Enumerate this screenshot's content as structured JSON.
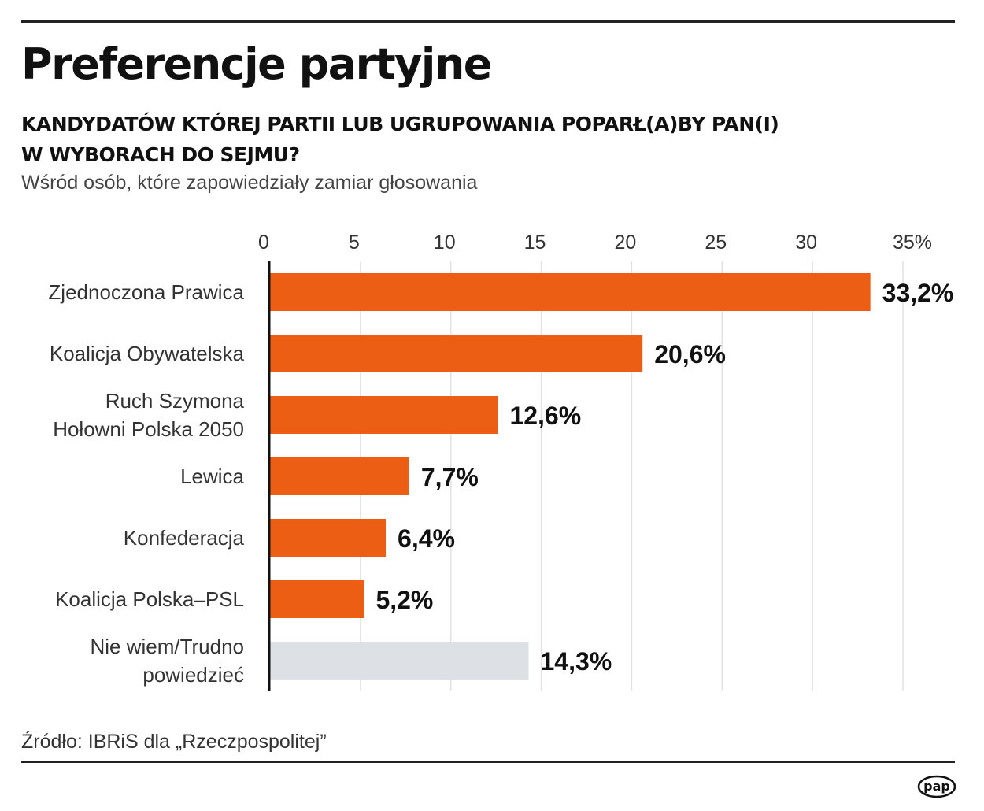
{
  "title": "Preferencje partyjne",
  "question_line1": "KANDYDATÓW KTÓREJ PARTII LUB UGRUPOWANIA POPARŁ(A)BY PAN(I)",
  "question_line2": "W WYBORACH DO SEJMU?",
  "subtitle": "Wśród osób, które zapowiedziały zamiar głosowania",
  "source": "Źródło: IBRiS dla „Rzeczpospolitej”",
  "logo_text": "pap",
  "colors": {
    "bar": "#eb5e14",
    "undecided_bar": "#dde1e5",
    "grid": "#e2e2e2",
    "axis": "#111111"
  },
  "chart_data": {
    "type": "bar",
    "orientation": "horizontal",
    "categories": [
      [
        "Zjednoczona Prawica"
      ],
      [
        "Koalicja Obywatelska"
      ],
      [
        "Ruch Szymona",
        "Hołowni Polska 2050"
      ],
      [
        "Lewica"
      ],
      [
        "Konfederacja"
      ],
      [
        "Koalicja Polska–PSL"
      ],
      [
        "Nie wiem/Trudno",
        "powiedzieć"
      ]
    ],
    "values": [
      33.2,
      20.6,
      12.6,
      7.7,
      6.4,
      5.2,
      14.3
    ],
    "data_labels": [
      "33,2%",
      "20,6%",
      "12,6%",
      "7,7%",
      "6,4%",
      "5,2%",
      "14,3%"
    ],
    "bar_colors": [
      "#eb5e14",
      "#eb5e14",
      "#eb5e14",
      "#eb5e14",
      "#eb5e14",
      "#eb5e14",
      "#dde1e5"
    ],
    "xticks": [
      0,
      5,
      10,
      15,
      20,
      25,
      30,
      35
    ],
    "xtick_labels": [
      "0",
      "5",
      "10",
      "15",
      "20",
      "25",
      "30",
      "35%"
    ],
    "xlim": [
      0,
      35
    ],
    "grid": true,
    "xaxis_position": "top"
  }
}
